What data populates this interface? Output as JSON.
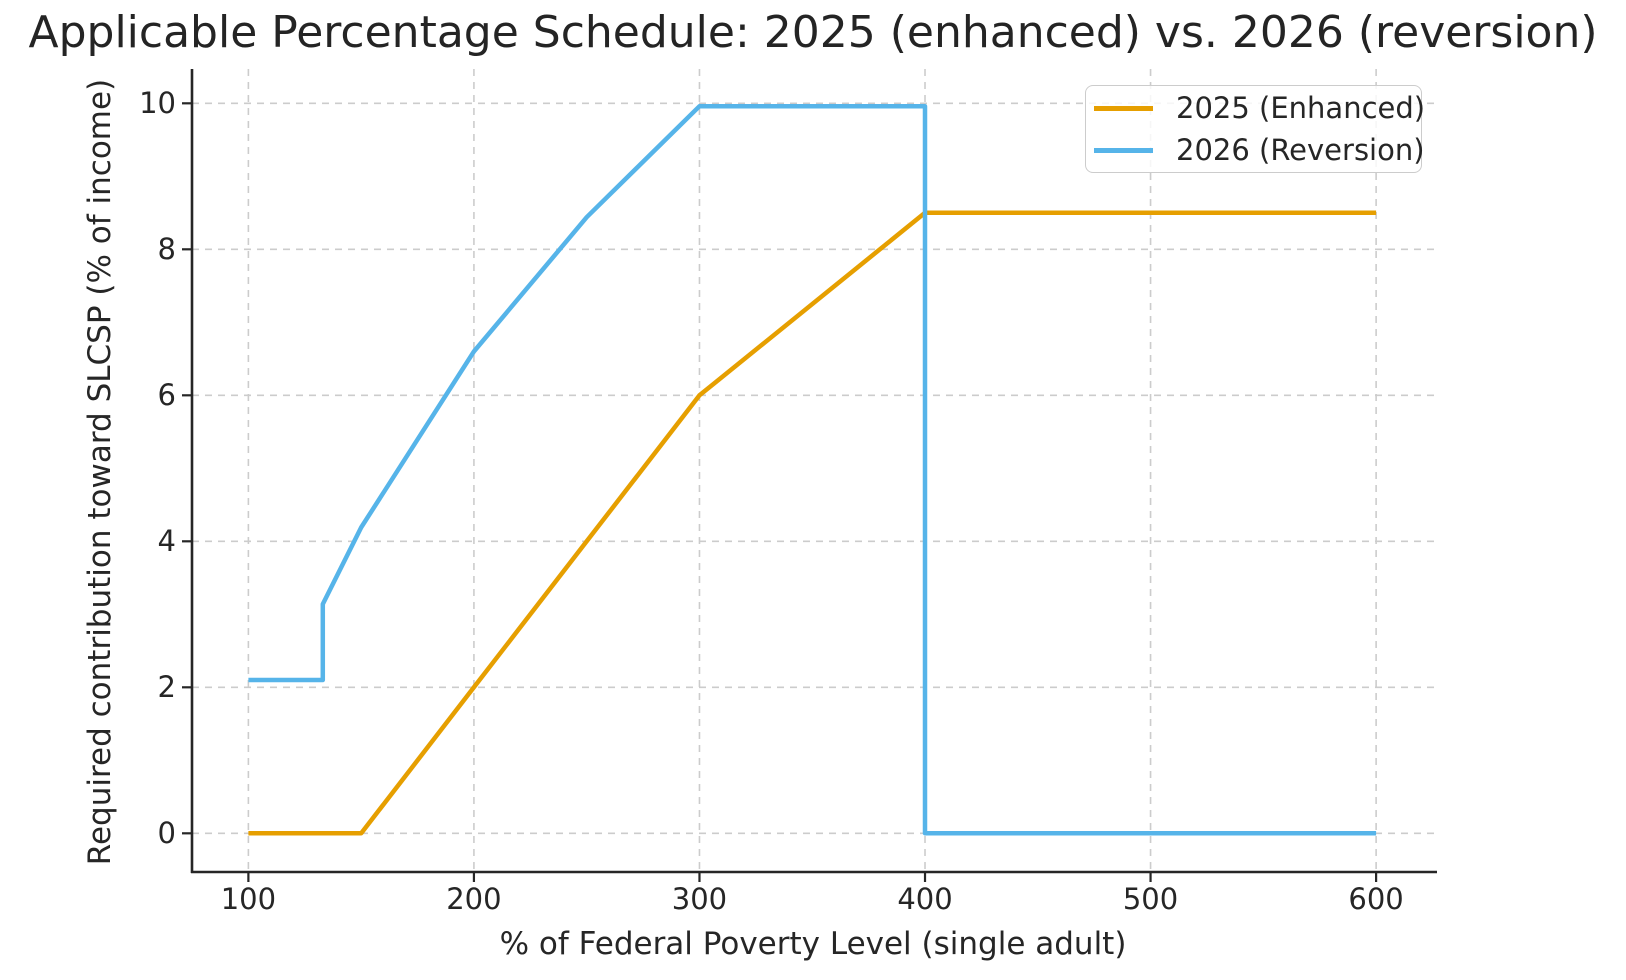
{
  "chart_data": {
    "type": "line",
    "title": "Applicable Percentage Schedule: 2025 (enhanced) vs. 2026 (reversion)",
    "xlabel": "% of Federal Poverty Level (single adult)",
    "ylabel": "Required contribution toward SLCSP (% of income)",
    "xlim": [
      75,
      627
    ],
    "ylim": [
      -0.53,
      10.47
    ],
    "xticks": [
      100,
      200,
      300,
      400,
      500,
      600
    ],
    "yticks": [
      0,
      2,
      4,
      6,
      8,
      10
    ],
    "grid": true,
    "legend_position": "upper right",
    "series": [
      {
        "name": "2025 (Enhanced)",
        "color": "#E69F00",
        "points": [
          [
            100,
            0
          ],
          [
            150,
            0
          ],
          [
            200,
            2
          ],
          [
            250,
            4
          ],
          [
            300,
            6
          ],
          [
            400,
            8.5
          ],
          [
            600,
            8.5
          ]
        ]
      },
      {
        "name": "2026 (Reversion)",
        "color": "#56B4E9",
        "points": [
          [
            100,
            2.1
          ],
          [
            133,
            2.1
          ],
          [
            133,
            3.14
          ],
          [
            150,
            4.19
          ],
          [
            200,
            6.6
          ],
          [
            250,
            8.44
          ],
          [
            300,
            9.96
          ],
          [
            400,
            9.96
          ],
          [
            400,
            0
          ],
          [
            600,
            0
          ]
        ]
      }
    ],
    "colors": {
      "grid": "#cccccc",
      "spine": "#262626",
      "text": "#262626"
    }
  }
}
